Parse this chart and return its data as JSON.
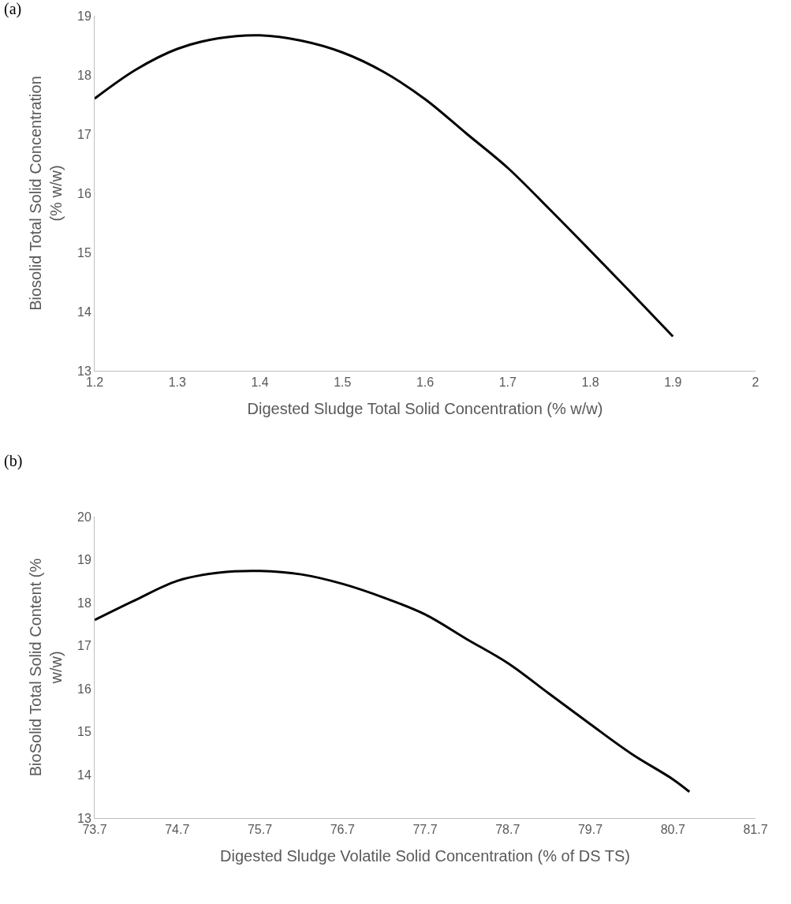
{
  "chart_data": [
    {
      "type": "line",
      "title": "(a)",
      "xlabel": "Digested Sludge Total Solid Concentration (% w/w)",
      "ylabel": "Biosolid Total Solid Concentration (% w/w)",
      "xlim": [
        1.2,
        2
      ],
      "xticks": [
        1.2,
        1.3,
        1.4,
        1.5,
        1.6,
        1.7,
        1.8,
        1.9,
        2
      ],
      "ylim": [
        13,
        19
      ],
      "yticks": [
        13,
        14,
        15,
        16,
        17,
        18,
        19
      ],
      "grid": false,
      "marker": "none",
      "line_style": "solid",
      "series": [
        {
          "color": "#000000",
          "x": [
            1.2,
            1.25,
            1.3,
            1.35,
            1.4,
            1.45,
            1.5,
            1.55,
            1.6,
            1.65,
            1.7,
            1.75,
            1.8,
            1.85,
            1.9
          ],
          "values": [
            17.6,
            18.09,
            18.44,
            18.62,
            18.67,
            18.58,
            18.38,
            18.05,
            17.59,
            17.01,
            16.43,
            15.74,
            15.03,
            14.31,
            13.58
          ]
        }
      ]
    },
    {
      "type": "line",
      "title": "(b)",
      "xlabel": "Digested Sludge Volatile Solid Concentration (% of DS TS)",
      "ylabel": "BioSolid Total Solid Content (% w/w)",
      "xlim": [
        73.7,
        81.7
      ],
      "xticks": [
        73.7,
        74.7,
        75.7,
        76.7,
        77.7,
        78.7,
        79.7,
        80.7,
        81.7
      ],
      "ylim": [
        13,
        20
      ],
      "yticks": [
        13,
        14,
        15,
        16,
        17,
        18,
        19,
        20
      ],
      "grid": false,
      "marker": "none",
      "line_style": "solid",
      "series": [
        {
          "color": "#000000",
          "x": [
            73.7,
            74.2,
            74.7,
            75.2,
            75.7,
            76.2,
            76.7,
            77.2,
            77.7,
            78.2,
            78.7,
            79.2,
            79.7,
            80.2,
            80.7,
            80.9
          ],
          "values": [
            17.6,
            18.07,
            18.51,
            18.7,
            18.74,
            18.66,
            18.44,
            18.12,
            17.73,
            17.16,
            16.6,
            15.89,
            15.18,
            14.49,
            13.9,
            13.61
          ]
        }
      ]
    }
  ]
}
